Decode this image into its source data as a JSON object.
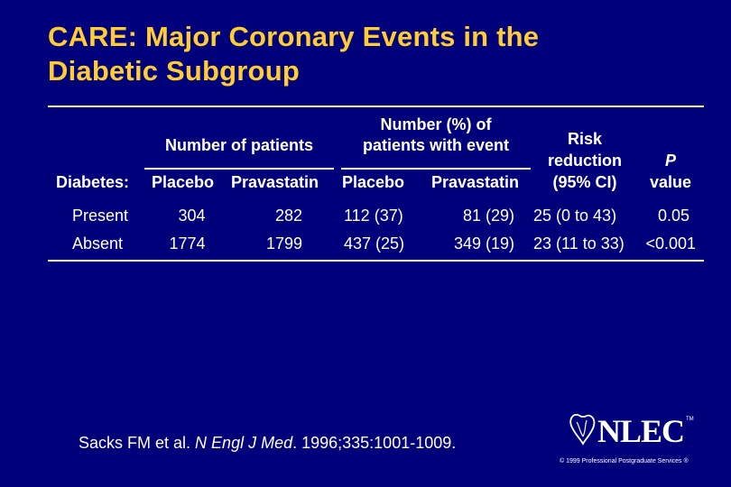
{
  "title": {
    "line1": "CARE: Major Coronary Events in the",
    "line2": "Diabetic Subgroup"
  },
  "headers": {
    "patients_group": "Number of patients",
    "event_group_line1": "Number (%) of",
    "event_group_line2": "patients with event",
    "risk_line1": "Risk",
    "risk_line2": "reduction",
    "risk_line3": "(95% CI)",
    "p_line1": "P",
    "p_line2": "value",
    "diabetes": "Diabetes:",
    "placebo1": "Placebo",
    "pravastatin1": "Pravastatin",
    "placebo2": "Placebo",
    "pravastatin2": "Pravastatin"
  },
  "rows": [
    {
      "label": "Present",
      "placebo_n": "304",
      "prava_n": "282",
      "placebo_event": "112 (37)",
      "prava_event": "81 (29)",
      "risk": "25 (0 to 43)",
      "p": "0.05"
    },
    {
      "label": "Absent",
      "placebo_n": "1774",
      "prava_n": "1799",
      "placebo_event": "437 (25)",
      "prava_event": "349 (19)",
      "risk": "23 (11 to 33)",
      "p": "<0.001"
    }
  ],
  "footer": {
    "authors": "Sacks FM et al. ",
    "journal": "N Engl J Med",
    "rest": ". 1996;335:1001-1009."
  },
  "logo": {
    "text": "NLEC",
    "tm": "TM"
  },
  "copyright": "© 1999 Professional Postgraduate Services ®",
  "colors": {
    "background": "#00007a",
    "title": "#ffcc33",
    "text": "#ffffff"
  }
}
